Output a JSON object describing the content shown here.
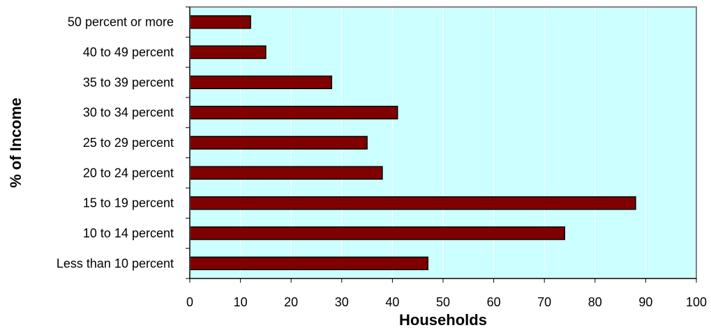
{
  "chart_data": {
    "type": "bar",
    "orientation": "horizontal",
    "title": "",
    "xlabel": "Households",
    "ylabel": "% of Income",
    "categories": [
      "Less than 10 percent",
      "10 to 14 percent",
      "15 to 19 percent",
      "20 to 24 percent",
      "25 to 29 percent",
      "30 to 34 percent",
      "35 to 39 percent",
      "40 to 49 percent",
      "50 percent or more"
    ],
    "values": [
      47,
      74,
      88,
      38,
      35,
      41,
      28,
      15,
      12
    ],
    "xlim": [
      0,
      100
    ],
    "xticks": [
      0,
      10,
      20,
      30,
      40,
      50,
      60,
      70,
      80,
      90,
      100
    ],
    "grid": true,
    "legend": "none",
    "colors": {
      "bar_fill": "#800000",
      "bar_stroke": "#000000",
      "plot_background": "#ccffff",
      "plot_border": "#808080",
      "gridline": "#ffffff"
    }
  }
}
